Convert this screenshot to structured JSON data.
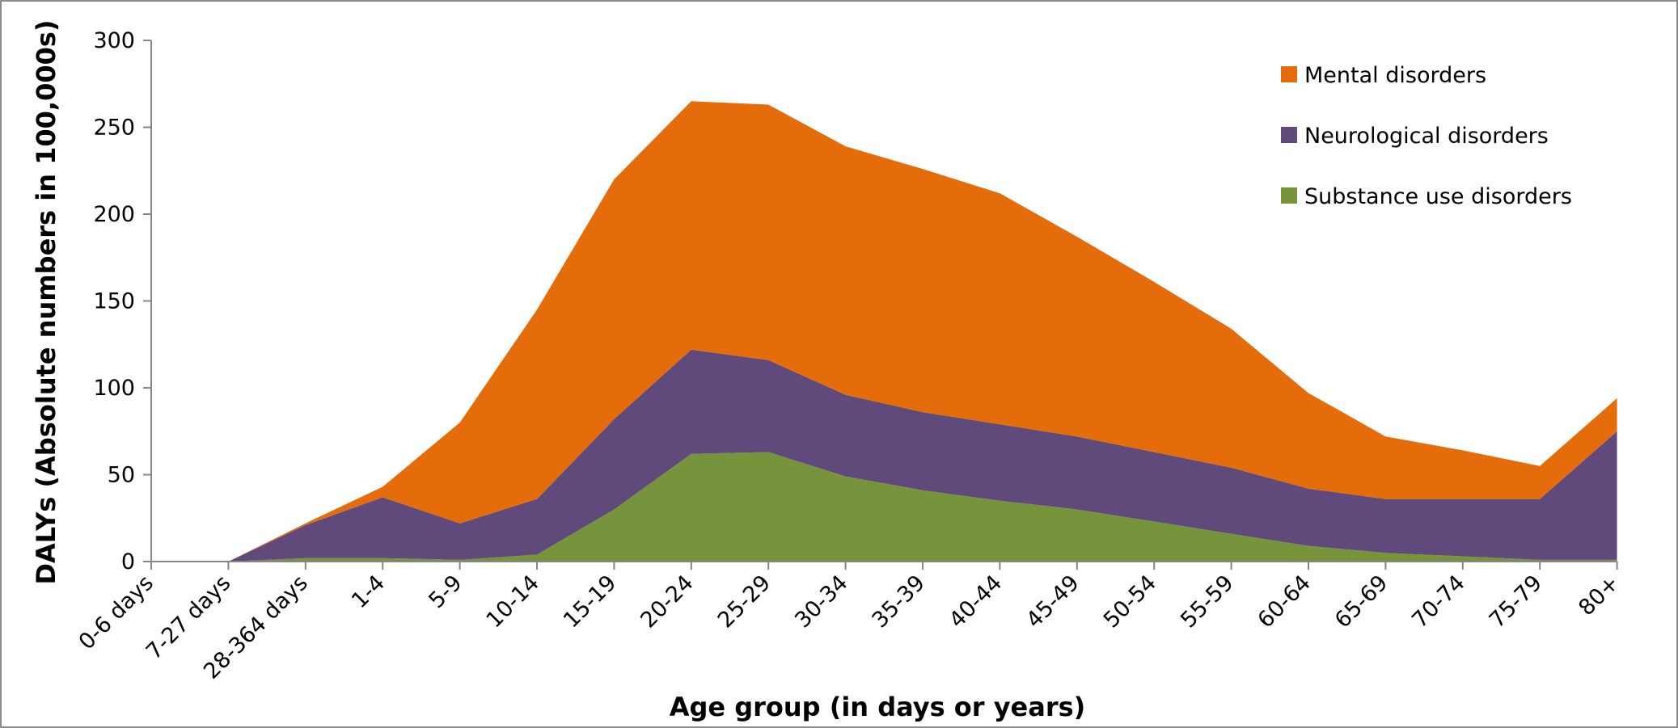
{
  "chart_data": {
    "type": "area",
    "stacked": true,
    "xlabel": "Age group (in days or years)",
    "ylabel": "DALYs (Absolute numbers in 100,000s)",
    "ylim": [
      0,
      300
    ],
    "yticks": [
      0,
      50,
      100,
      150,
      200,
      250,
      300
    ],
    "legend_position": "top-right",
    "categories": [
      "0-6 days",
      "7-27 days",
      "28-364 days",
      "1-4",
      "5-9",
      "10-14",
      "15-19",
      "20-24",
      "25-29",
      "30-34",
      "35-39",
      "40-44",
      "45-49",
      "50-54",
      "55-59",
      "60-64",
      "65-69",
      "70-74",
      "75-79",
      "80+"
    ],
    "series": [
      {
        "name": "Substance use disorders",
        "color": "#77933C",
        "values": [
          0,
          0,
          2,
          2,
          1,
          4,
          30,
          62,
          63,
          49,
          41,
          35,
          30,
          23,
          16,
          9,
          5,
          3,
          1,
          1
        ]
      },
      {
        "name": "Neurological disorders",
        "color": "#604A7B",
        "values": [
          0,
          0,
          19,
          35,
          21,
          32,
          52,
          60,
          53,
          47,
          45,
          44,
          42,
          40,
          38,
          33,
          31,
          33,
          35,
          74
        ]
      },
      {
        "name": "Mental disorders",
        "color": "#E46C0A",
        "values": [
          0,
          0,
          1,
          6,
          58,
          109,
          138,
          143,
          147,
          143,
          140,
          133,
          115,
          98,
          80,
          55,
          36,
          28,
          19,
          19
        ]
      }
    ],
    "legend_order": [
      "Mental disorders",
      "Neurological disorders",
      "Substance use disorders"
    ]
  }
}
